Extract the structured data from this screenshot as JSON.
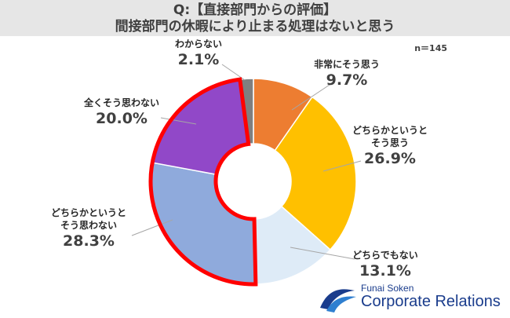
{
  "header": {
    "title_line1": "Q:【直接部門からの評価】",
    "title_line2": "間接部門の休暇により止まる処理はないと思う"
  },
  "sample_size": "n＝145",
  "chart_data": {
    "type": "pie",
    "donut": true,
    "start_angle_deg": 0,
    "direction": "clockwise",
    "slices": [
      {
        "label_lines": [
          "非常にそう思う"
        ],
        "value": 9.7,
        "pct_text": "9.7%",
        "color": "#ed7d31"
      },
      {
        "label_lines": [
          "どちらかというと",
          "そう思う"
        ],
        "value": 26.9,
        "pct_text": "26.9%",
        "color": "#ffc000"
      },
      {
        "label_lines": [
          "どちらでもない"
        ],
        "value": 13.1,
        "pct_text": "13.1%",
        "color": "#deebf7"
      },
      {
        "label_lines": [
          "どちらかというと",
          "そう思わない"
        ],
        "value": 28.3,
        "pct_text": "28.3%",
        "color": "#8faadc"
      },
      {
        "label_lines": [
          "全くそう思わない"
        ],
        "value": 20.0,
        "pct_text": "20.0%",
        "color": "#9148c8"
      },
      {
        "label_lines": [
          "わからない"
        ],
        "value": 2.1,
        "pct_text": "2.1%",
        "color": "#7f7f7f"
      }
    ],
    "highlight": {
      "slices": [
        3,
        4
      ],
      "outline_color": "#ff0000"
    }
  },
  "logo": {
    "sub": "Funai Soken",
    "main": "Corporate Relations",
    "colors": {
      "primary": "#1a3c8c",
      "accent": "#2f7fd0"
    }
  }
}
